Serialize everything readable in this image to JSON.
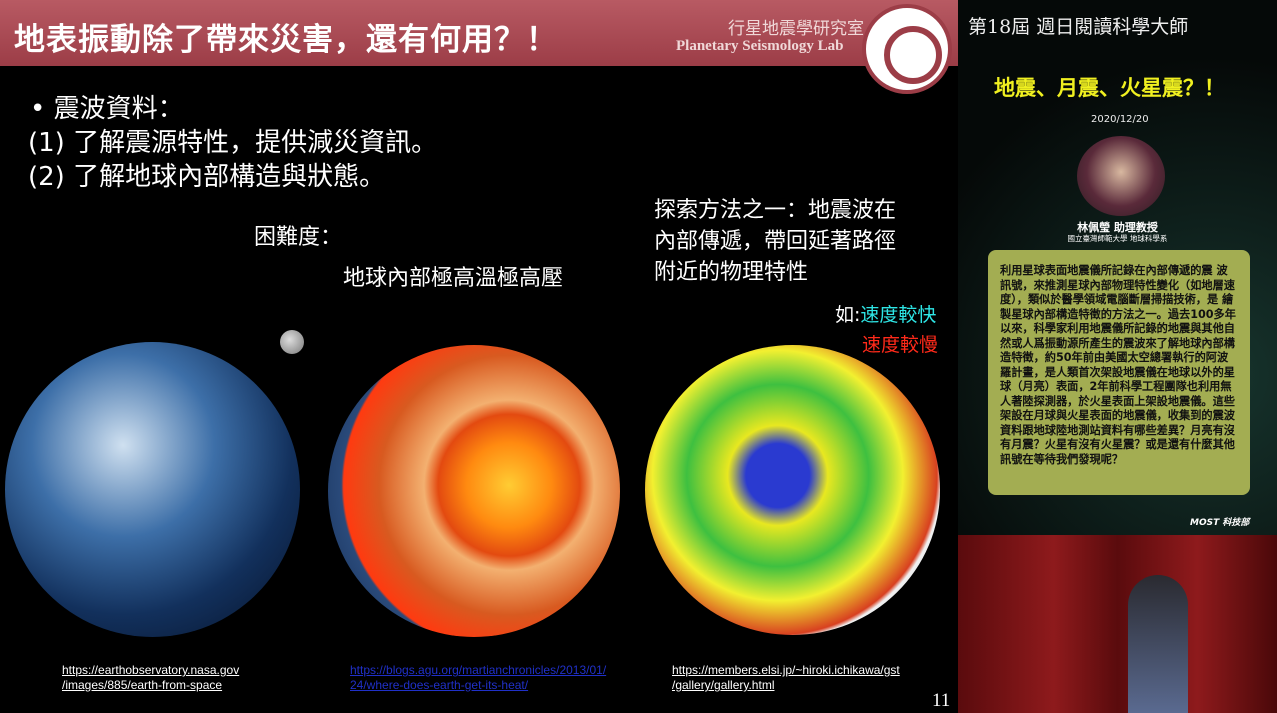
{
  "slide": {
    "title": "地表振動除了帶來災害，還有何用？！",
    "lab_zh": "行星地震學研究室",
    "lab_en": "Planetary Seismology Lab",
    "bullets": [
      "• 震波資料：",
      "(1) 了解震源特性，提供減災資訊。",
      "(2) 了解地球內部構造與狀態。"
    ],
    "difficulty": "困難度：",
    "difficulty_detail": "地球內部極高溫極高壓",
    "method": [
      "探索方法之一：地震波在",
      "內部傳遞，帶回延著路徑",
      "附近的物理特性"
    ],
    "legend_prefix": "如:",
    "legend_fast": "速度較快",
    "legend_slow": "速度較慢",
    "colors": {
      "fast": "#2ee6e6",
      "slow": "#ff2a1a",
      "title_bar": "#a8474f"
    },
    "urls": [
      [
        "https://earthobservatory.nasa.gov",
        "/images/885/earth-from-space"
      ],
      [
        "https://blogs.agu.org/martianchronicles/2013/01/",
        "24/where-does-earth-get-its-heat/"
      ],
      [
        "https://members.elsi.jp/~hiroki.ichikawa/gst",
        "/gallery/gallery.html"
      ]
    ],
    "page_number": "11"
  },
  "sidebar": {
    "series": "第18屆 週日閱讀科學大師",
    "talk_title": "地震、月震、火星震？！",
    "date": "2020/12/20",
    "speaker": "林佩瑩  助理教授",
    "affiliation": "國立臺灣師範大學  地球科學系",
    "description": "利用星球表面地震儀所記錄在內部傳遞的震 波訊號，來推測星球內部物理特性變化（如地層速度），類似於醫學領域電腦斷層掃描技術，是 繪製星球內部構造特徵的方法之一。過去100多年以來，科學家利用地震儀所記錄的地震與其他自然或人爲振動源所產生的震波來了解地球內部構造特徵，約50年前由美國太空總署執行的阿波羅計畫，是人類首次架設地震儀在地球以外的星球（月亮）表面，2年前科學工程團隊也利用無 人著陸探測器，於火星表面上架設地震儀。這些架設在月球與火星表面的地震儀，收集到的震波資料跟地球陸地測站資料有哪些差異？月亮有沒有月震？火星有沒有火星震？或是還有什麼其他 訊號在等待我們發現呢？",
    "sponsor": "MOST 科技部"
  }
}
